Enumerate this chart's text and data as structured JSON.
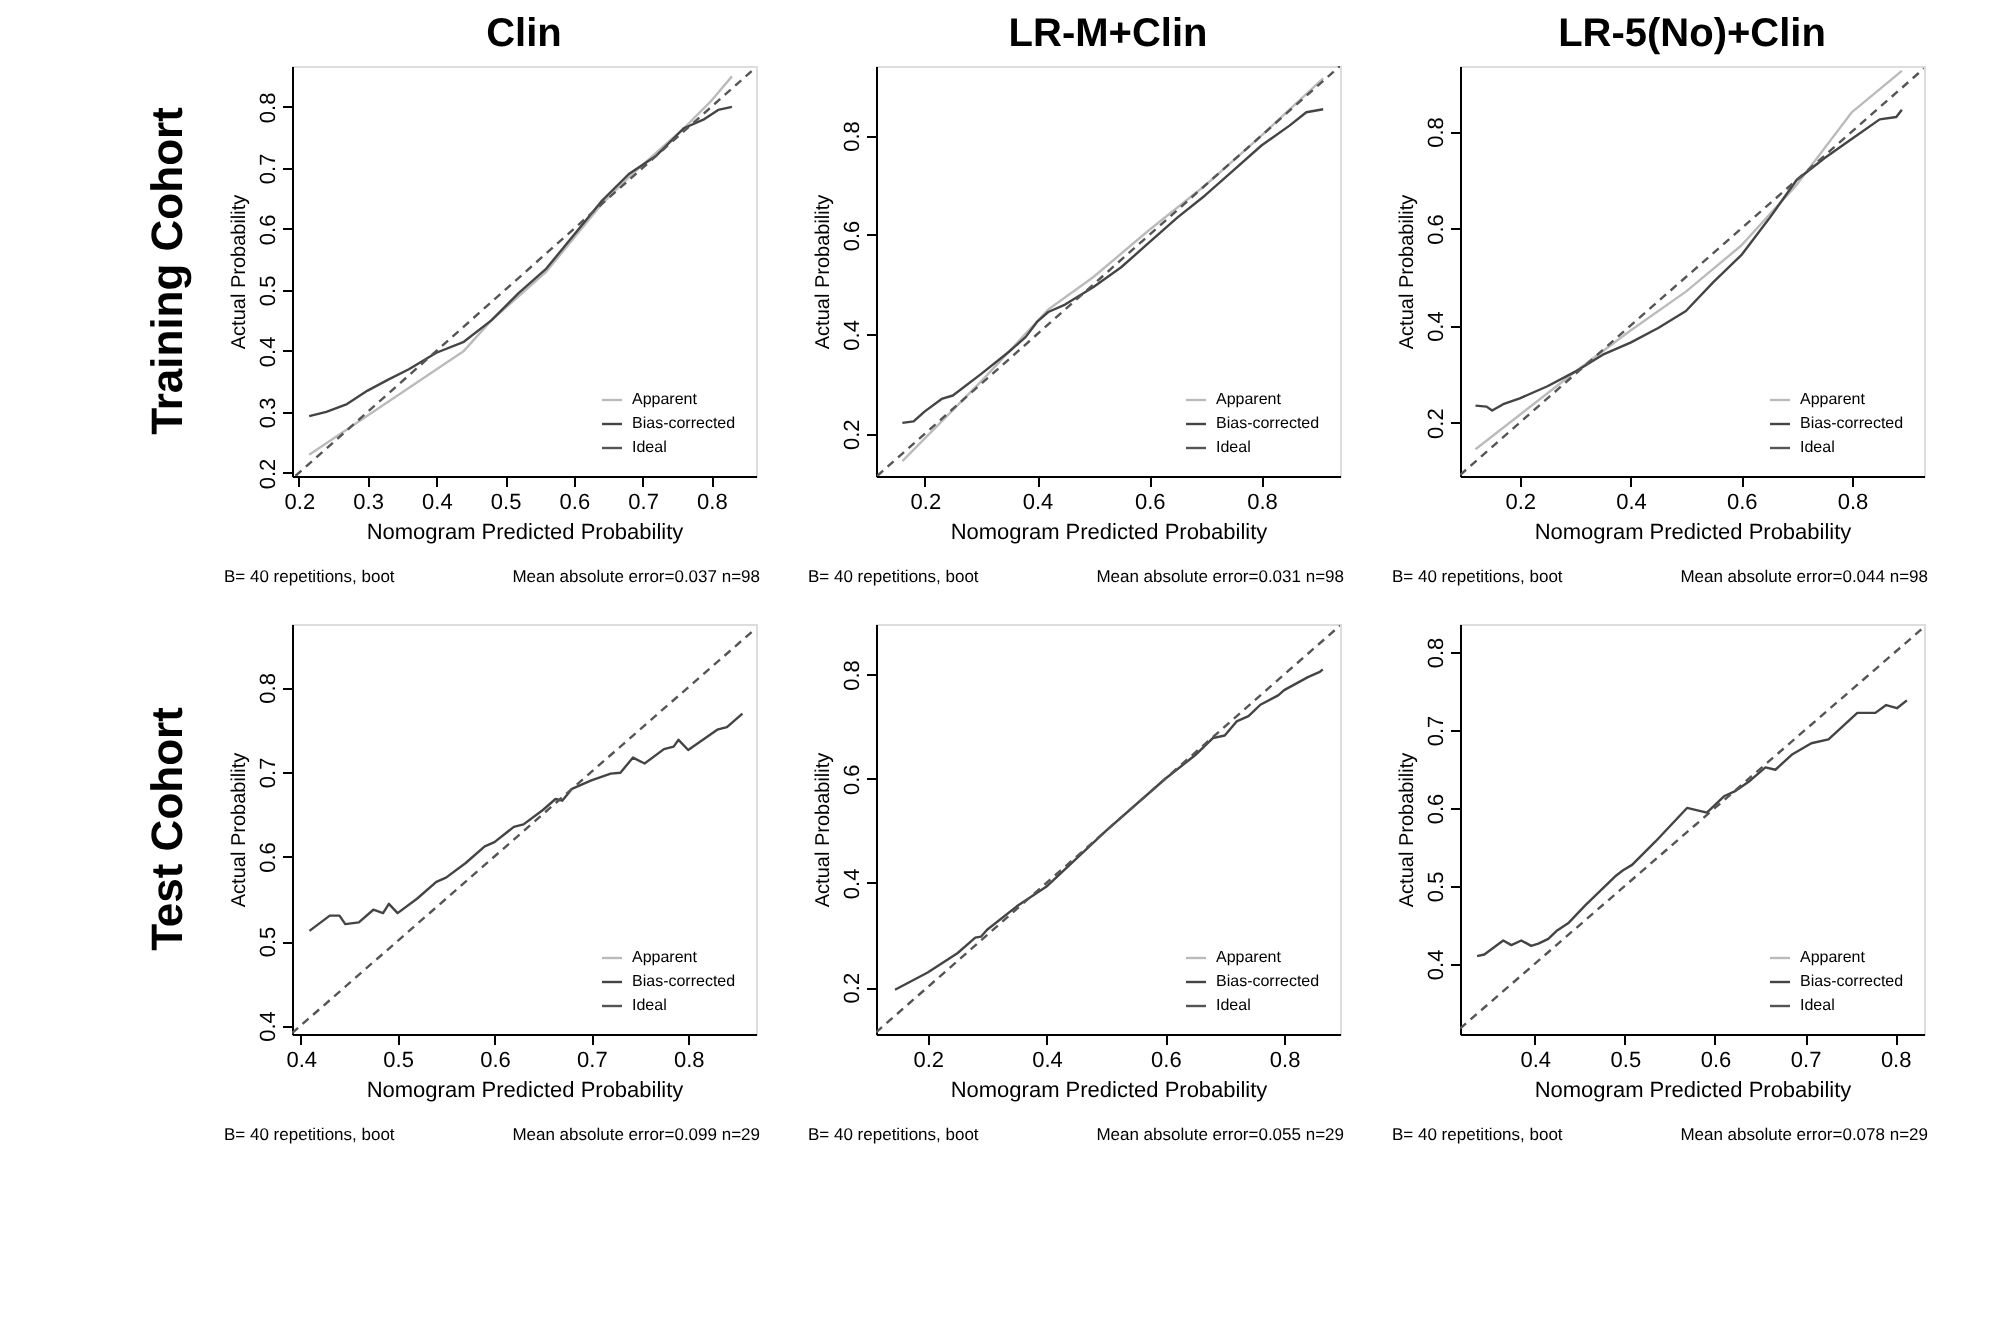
{
  "chart_data": [
    {
      "type": "line",
      "title": "Clin",
      "xlabel": "Nomogram Predicted Probability",
      "ylabel": "Actual Probability",
      "xlim": [
        0.19,
        0.865
      ],
      "ylim": [
        0.195,
        0.867
      ],
      "xticks": [
        0.2,
        0.3,
        0.4,
        0.5,
        0.6,
        0.7,
        0.8
      ],
      "yticks": [
        0.2,
        0.3,
        0.4,
        0.5,
        0.6,
        0.7,
        0.8
      ],
      "grid": false,
      "legend": "bottom right",
      "series": [
        {
          "name": "Apparent",
          "color": "#bbbbbb",
          "line_style": "solid",
          "x": [
            0.215,
            0.44,
            0.48,
            0.52,
            0.56,
            0.6,
            0.64,
            0.68,
            0.72,
            0.76,
            0.8,
            0.83
          ],
          "values": [
            0.23,
            0.4,
            0.45,
            0.49,
            0.53,
            0.585,
            0.64,
            0.685,
            0.725,
            0.765,
            0.81,
            0.85
          ]
        },
        {
          "name": "Bias-corrected",
          "color": "#444444",
          "line_style": "solid",
          "x": [
            0.215,
            0.24,
            0.27,
            0.3,
            0.33,
            0.36,
            0.4,
            0.44,
            0.48,
            0.52,
            0.56,
            0.6,
            0.64,
            0.68,
            0.72,
            0.76,
            0.79,
            0.81,
            0.83
          ],
          "values": [
            0.293,
            0.3,
            0.313,
            0.335,
            0.353,
            0.37,
            0.397,
            0.415,
            0.45,
            0.495,
            0.535,
            0.59,
            0.645,
            0.69,
            0.72,
            0.765,
            0.78,
            0.795,
            0.8
          ]
        },
        {
          "name": "Ideal",
          "color": "#555555",
          "line_style": "dashed",
          "x": [
            0.195,
            0.865
          ],
          "values": [
            0.195,
            0.865
          ]
        }
      ],
      "annotations": [
        "B= 40 repetitions, boot",
        "Mean absolute error=0.037 n=98",
        "Training Cohort"
      ]
    },
    {
      "type": "line",
      "title": "LR-M+Clin",
      "xlabel": "Nomogram Predicted Probability",
      "ylabel": "Actual Probability",
      "xlim": [
        0.113,
        0.94
      ],
      "ylim": [
        0.115,
        0.94
      ],
      "xticks": [
        0.2,
        0.4,
        0.6,
        0.8
      ],
      "yticks": [
        0.2,
        0.4,
        0.6,
        0.8
      ],
      "grid": false,
      "legend": "bottom right",
      "series": [
        {
          "name": "Apparent",
          "color": "#bbbbbb",
          "line_style": "solid",
          "x": [
            0.16,
            0.3,
            0.42,
            0.5,
            0.6,
            0.7,
            0.8,
            0.91
          ],
          "values": [
            0.145,
            0.305,
            0.45,
            0.515,
            0.61,
            0.7,
            0.8,
            0.915
          ]
        },
        {
          "name": "Bias-corrected",
          "color": "#444444",
          "line_style": "solid",
          "x": [
            0.16,
            0.18,
            0.2,
            0.23,
            0.25,
            0.3,
            0.35,
            0.38,
            0.4,
            0.42,
            0.45,
            0.5,
            0.55,
            0.6,
            0.65,
            0.7,
            0.75,
            0.8,
            0.85,
            0.88,
            0.91
          ],
          "values": [
            0.222,
            0.225,
            0.245,
            0.27,
            0.277,
            0.32,
            0.365,
            0.395,
            0.425,
            0.445,
            0.46,
            0.495,
            0.535,
            0.585,
            0.635,
            0.68,
            0.73,
            0.78,
            0.82,
            0.847,
            0.853
          ]
        },
        {
          "name": "Ideal",
          "color": "#555555",
          "line_style": "dashed",
          "x": [
            0.115,
            0.94
          ],
          "values": [
            0.115,
            0.94
          ]
        }
      ],
      "annotations": [
        "B= 40 repetitions, boot",
        "Mean absolute error=0.031 n=98"
      ]
    },
    {
      "type": "line",
      "title": "LR-5(No)+Clin",
      "xlabel": "Nomogram Predicted Probability",
      "ylabel": "Actual Probability",
      "xlim": [
        0.092,
        0.93
      ],
      "ylim": [
        0.09,
        0.935
      ],
      "xticks": [
        0.2,
        0.4,
        0.6,
        0.8
      ],
      "yticks": [
        0.2,
        0.4,
        0.6,
        0.8
      ],
      "grid": false,
      "legend": "bottom right",
      "series": [
        {
          "name": "Apparent",
          "color": "#bbbbbb",
          "line_style": "solid",
          "x": [
            0.12,
            0.3,
            0.4,
            0.5,
            0.6,
            0.7,
            0.8,
            0.89
          ],
          "values": [
            0.145,
            0.305,
            0.39,
            0.47,
            0.565,
            0.69,
            0.84,
            0.925
          ]
        },
        {
          "name": "Bias-corrected",
          "color": "#444444",
          "line_style": "solid",
          "x": [
            0.12,
            0.14,
            0.15,
            0.17,
            0.2,
            0.25,
            0.3,
            0.35,
            0.4,
            0.45,
            0.5,
            0.55,
            0.6,
            0.65,
            0.7,
            0.75,
            0.8,
            0.85,
            0.88,
            0.89
          ],
          "values": [
            0.235,
            0.233,
            0.225,
            0.238,
            0.25,
            0.275,
            0.305,
            0.34,
            0.365,
            0.395,
            0.43,
            0.49,
            0.545,
            0.62,
            0.7,
            0.745,
            0.785,
            0.825,
            0.83,
            0.845
          ]
        },
        {
          "name": "Ideal",
          "color": "#555555",
          "line_style": "dashed",
          "x": [
            0.092,
            0.93
          ],
          "values": [
            0.092,
            0.93
          ]
        }
      ],
      "annotations": [
        "B= 40 repetitions, boot",
        "Mean absolute error=0.044 n=98"
      ]
    },
    {
      "type": "line",
      "xlabel": "Nomogram Predicted Probability",
      "ylabel": "Actual Probability",
      "xlim": [
        0.391,
        0.87
      ],
      "ylim": [
        0.39,
        0.875
      ],
      "xticks": [
        0.4,
        0.5,
        0.6,
        0.7,
        0.8
      ],
      "yticks": [
        0.4,
        0.5,
        0.6,
        0.7,
        0.8
      ],
      "grid": false,
      "legend": "bottom right",
      "series": [
        {
          "name": "Apparent",
          "color": "#bbbbbb",
          "line_style": "solid"
        },
        {
          "name": "Bias-corrected",
          "color": "#444444",
          "line_style": "solid",
          "x": [
            0.409,
            0.43,
            0.44,
            0.446,
            0.46,
            0.475,
            0.485,
            0.491,
            0.5,
            0.52,
            0.54,
            0.55,
            0.57,
            0.59,
            0.6,
            0.62,
            0.63,
            0.65,
            0.663,
            0.67,
            0.68,
            0.69,
            0.7,
            0.72,
            0.73,
            0.743,
            0.755,
            0.775,
            0.785,
            0.79,
            0.8,
            0.83,
            0.84,
            0.856
          ],
          "values": [
            0.512,
            0.53,
            0.53,
            0.52,
            0.522,
            0.537,
            0.533,
            0.544,
            0.533,
            0.55,
            0.57,
            0.575,
            0.592,
            0.612,
            0.617,
            0.635,
            0.638,
            0.655,
            0.668,
            0.666,
            0.68,
            0.685,
            0.69,
            0.698,
            0.699,
            0.717,
            0.71,
            0.727,
            0.73,
            0.738,
            0.726,
            0.75,
            0.753,
            0.769
          ]
        },
        {
          "name": "Ideal",
          "color": "#555555",
          "line_style": "dashed",
          "x": [
            0.391,
            0.87
          ],
          "values": [
            0.391,
            0.87
          ]
        }
      ],
      "annotations": [
        "B= 40 repetitions, boot",
        "Mean absolute error=0.099 n=29",
        "Test Cohort"
      ]
    },
    {
      "type": "line",
      "xlabel": "Nomogram Predicted Probability",
      "ylabel": "Actual Probability",
      "xlim": [
        0.113,
        0.894
      ],
      "ylim": [
        0.11,
        0.897
      ],
      "xticks": [
        0.2,
        0.4,
        0.6,
        0.8
      ],
      "yticks": [
        0.2,
        0.4,
        0.6,
        0.8
      ],
      "grid": false,
      "legend": "bottom right",
      "series": [
        {
          "name": "Apparent",
          "color": "#bbbbbb",
          "line_style": "solid"
        },
        {
          "name": "Bias-corrected",
          "color": "#444444",
          "line_style": "solid",
          "x": [
            0.145,
            0.2,
            0.25,
            0.27,
            0.28,
            0.29,
            0.3,
            0.35,
            0.4,
            0.5,
            0.6,
            0.65,
            0.68,
            0.7,
            0.72,
            0.74,
            0.76,
            0.79,
            0.8,
            0.84,
            0.86,
            0.865
          ],
          "values": [
            0.195,
            0.228,
            0.265,
            0.285,
            0.295,
            0.297,
            0.31,
            0.355,
            0.393,
            0.5,
            0.6,
            0.645,
            0.678,
            0.683,
            0.71,
            0.72,
            0.742,
            0.76,
            0.77,
            0.795,
            0.805,
            0.81
          ]
        },
        {
          "name": "Ideal",
          "color": "#555555",
          "line_style": "dashed",
          "x": [
            0.113,
            0.894
          ],
          "values": [
            0.113,
            0.894
          ]
        }
      ],
      "annotations": [
        "B= 40 repetitions, boot",
        "Mean absolute error=0.055 n=29"
      ]
    },
    {
      "type": "line",
      "xlabel": "Nomogram Predicted Probability",
      "ylabel": "Actual Probability",
      "xlim": [
        0.317,
        0.832
      ],
      "ylim": [
        0.31,
        0.836
      ],
      "xticks": [
        0.4,
        0.5,
        0.6,
        0.7,
        0.8
      ],
      "yticks": [
        0.4,
        0.5,
        0.6,
        0.7,
        0.8
      ],
      "grid": false,
      "legend": "bottom right",
      "series": [
        {
          "name": "Apparent",
          "color": "#bbbbbb",
          "line_style": "solid"
        },
        {
          "name": "Bias-corrected",
          "color": "#444444",
          "line_style": "solid",
          "x": [
            0.336,
            0.344,
            0.365,
            0.374,
            0.385,
            0.396,
            0.404,
            0.415,
            0.424,
            0.437,
            0.456,
            0.489,
            0.498,
            0.508,
            0.534,
            0.569,
            0.591,
            0.61,
            0.623,
            0.639,
            0.656,
            0.667,
            0.686,
            0.707,
            0.726,
            0.742,
            0.758,
            0.778,
            0.79,
            0.802,
            0.813
          ],
          "values": [
            0.41,
            0.412,
            0.43,
            0.424,
            0.43,
            0.423,
            0.426,
            0.432,
            0.442,
            0.452,
            0.475,
            0.512,
            0.52,
            0.527,
            0.557,
            0.6,
            0.594,
            0.615,
            0.622,
            0.635,
            0.652,
            0.649,
            0.669,
            0.683,
            0.688,
            0.705,
            0.722,
            0.722,
            0.732,
            0.728,
            0.738
          ]
        },
        {
          "name": "Ideal",
          "color": "#555555",
          "line_style": "dashed",
          "x": [
            0.317,
            0.832
          ],
          "values": [
            0.317,
            0.832
          ]
        }
      ],
      "annotations": [
        "B= 40 repetitions, boot",
        "Mean absolute error=0.078 n=29"
      ]
    }
  ]
}
